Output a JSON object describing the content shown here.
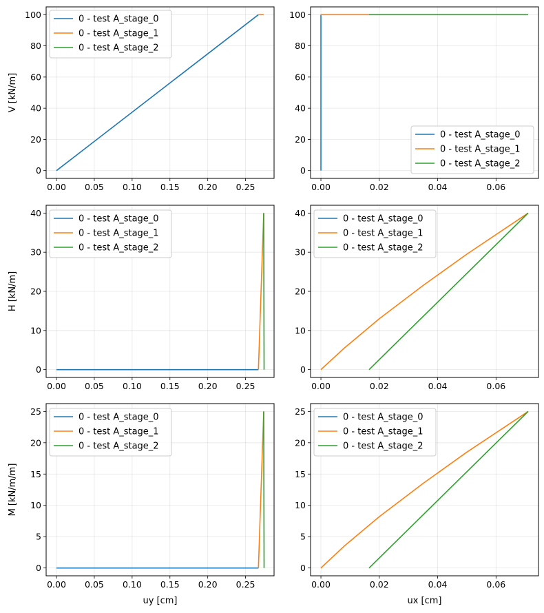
{
  "chart_data": [
    {
      "type": "line",
      "xlabel": "",
      "ylabel": "V [kN/m]",
      "xlim": [
        -0.0137,
        0.2877
      ],
      "ylim": [
        -5,
        105
      ],
      "xticks": [
        0.0,
        0.05,
        0.1,
        0.15,
        0.2,
        0.25
      ],
      "xticklabels": [
        "0.00",
        "0.05",
        "0.10",
        "0.15",
        "0.20",
        "0.25"
      ],
      "yticks": [
        0,
        20,
        40,
        60,
        80,
        100
      ],
      "yticklabels": [
        "0",
        "20",
        "40",
        "60",
        "80",
        "100"
      ],
      "grid": true,
      "legend": "upper left",
      "series": [
        {
          "name": "0 - test A_stage_0",
          "color": "#1f77b4",
          "x": [
            0.0,
            0.267
          ],
          "y": [
            0,
            100
          ]
        },
        {
          "name": "0 - test A_stage_1",
          "color": "#ff7f0e",
          "x": [
            0.267,
            0.274
          ],
          "y": [
            100,
            100
          ]
        },
        {
          "name": "0 - test A_stage_2",
          "color": "#2ca02c",
          "x": [
            0.274,
            0.274
          ],
          "y": [
            100,
            100
          ]
        }
      ]
    },
    {
      "type": "line",
      "xlabel": "",
      "ylabel": "",
      "xlim": [
        -0.00355,
        0.07455
      ],
      "ylim": [
        -5,
        105
      ],
      "xticks": [
        0.0,
        0.02,
        0.04,
        0.06
      ],
      "xticklabels": [
        "0.00",
        "0.02",
        "0.04",
        "0.06"
      ],
      "yticks": [
        0,
        20,
        40,
        60,
        80,
        100
      ],
      "yticklabels": [
        "0",
        "20",
        "40",
        "60",
        "80",
        "100"
      ],
      "grid": true,
      "legend": "lower right",
      "series": [
        {
          "name": "0 - test A_stage_0",
          "color": "#1f77b4",
          "x": [
            0.0,
            0.0
          ],
          "y": [
            0,
            100
          ]
        },
        {
          "name": "0 - test A_stage_1",
          "color": "#ff7f0e",
          "x": [
            0.0,
            0.0165
          ],
          "y": [
            100,
            100
          ]
        },
        {
          "name": "0 - test A_stage_2",
          "color": "#2ca02c",
          "x": [
            0.0165,
            0.071
          ],
          "y": [
            100,
            100
          ]
        }
      ]
    },
    {
      "type": "line",
      "xlabel": "",
      "ylabel": "H [kN/m]",
      "xlim": [
        -0.0137,
        0.2877
      ],
      "ylim": [
        -2,
        42
      ],
      "xticks": [
        0.0,
        0.05,
        0.1,
        0.15,
        0.2,
        0.25
      ],
      "xticklabels": [
        "0.00",
        "0.05",
        "0.10",
        "0.15",
        "0.20",
        "0.25"
      ],
      "yticks": [
        0,
        10,
        20,
        30,
        40
      ],
      "yticklabels": [
        "0",
        "10",
        "20",
        "30",
        "40"
      ],
      "grid": true,
      "legend": "upper left",
      "series": [
        {
          "name": "0 - test A_stage_0",
          "color": "#1f77b4",
          "x": [
            0.0,
            0.267
          ],
          "y": [
            0,
            0
          ]
        },
        {
          "name": "0 - test A_stage_1",
          "color": "#ff7f0e",
          "x": [
            0.267,
            0.274
          ],
          "y": [
            0,
            40
          ]
        },
        {
          "name": "0 - test A_stage_2",
          "color": "#2ca02c",
          "x": [
            0.2745,
            0.274
          ],
          "y": [
            0,
            40
          ]
        }
      ]
    },
    {
      "type": "line",
      "xlabel": "",
      "ylabel": "",
      "xlim": [
        -0.00355,
        0.07455
      ],
      "ylim": [
        -2,
        42
      ],
      "xticks": [
        0.0,
        0.02,
        0.04,
        0.06
      ],
      "xticklabels": [
        "0.00",
        "0.02",
        "0.04",
        "0.06"
      ],
      "yticks": [
        0,
        10,
        20,
        30,
        40
      ],
      "yticklabels": [
        "0",
        "10",
        "20",
        "30",
        "40"
      ],
      "grid": true,
      "legend": "upper left",
      "series": [
        {
          "name": "0 - test A_stage_0",
          "color": "#1f77b4",
          "x": [
            0.0,
            0.0
          ],
          "y": [
            0,
            0
          ]
        },
        {
          "name": "0 - test A_stage_1",
          "color": "#ff7f0e",
          "x": [
            0.0,
            0.008,
            0.02,
            0.035,
            0.05,
            0.071
          ],
          "y": [
            0,
            5.5,
            13,
            21.5,
            29.5,
            40
          ]
        },
        {
          "name": "0 - test A_stage_2",
          "color": "#2ca02c",
          "x": [
            0.0165,
            0.071
          ],
          "y": [
            0,
            40
          ]
        }
      ]
    },
    {
      "type": "line",
      "xlabel": "uy [cm]",
      "ylabel": "M [kN/m/m]",
      "xlim": [
        -0.0137,
        0.2877
      ],
      "ylim": [
        -1.25,
        26.25
      ],
      "xticks": [
        0.0,
        0.05,
        0.1,
        0.15,
        0.2,
        0.25
      ],
      "xticklabels": [
        "0.00",
        "0.05",
        "0.10",
        "0.15",
        "0.20",
        "0.25"
      ],
      "yticks": [
        0,
        5,
        10,
        15,
        20,
        25
      ],
      "yticklabels": [
        "0",
        "5",
        "10",
        "15",
        "20",
        "25"
      ],
      "grid": true,
      "legend": "upper left",
      "series": [
        {
          "name": "0 - test A_stage_0",
          "color": "#1f77b4",
          "x": [
            0.0,
            0.267
          ],
          "y": [
            0,
            0
          ]
        },
        {
          "name": "0 - test A_stage_1",
          "color": "#ff7f0e",
          "x": [
            0.267,
            0.274
          ],
          "y": [
            0,
            25
          ]
        },
        {
          "name": "0 - test A_stage_2",
          "color": "#2ca02c",
          "x": [
            0.2745,
            0.274
          ],
          "y": [
            0,
            25
          ]
        }
      ]
    },
    {
      "type": "line",
      "xlabel": "ux [cm]",
      "ylabel": "",
      "xlim": [
        -0.00355,
        0.07455
      ],
      "ylim": [
        -1.25,
        26.25
      ],
      "xticks": [
        0.0,
        0.02,
        0.04,
        0.06
      ],
      "xticklabels": [
        "0.00",
        "0.02",
        "0.04",
        "0.06"
      ],
      "yticks": [
        0,
        5,
        10,
        15,
        20,
        25
      ],
      "yticklabels": [
        "0",
        "5",
        "10",
        "15",
        "20",
        "25"
      ],
      "grid": true,
      "legend": "upper left",
      "series": [
        {
          "name": "0 - test A_stage_0",
          "color": "#1f77b4",
          "x": [
            0.0,
            0.0
          ],
          "y": [
            0,
            0
          ]
        },
        {
          "name": "0 - test A_stage_1",
          "color": "#ff7f0e",
          "x": [
            0.0,
            0.008,
            0.02,
            0.035,
            0.05,
            0.071
          ],
          "y": [
            0,
            3.5,
            8.2,
            13.5,
            18.5,
            25
          ]
        },
        {
          "name": "0 - test A_stage_2",
          "color": "#2ca02c",
          "x": [
            0.0165,
            0.071
          ],
          "y": [
            0,
            25
          ]
        }
      ]
    }
  ]
}
